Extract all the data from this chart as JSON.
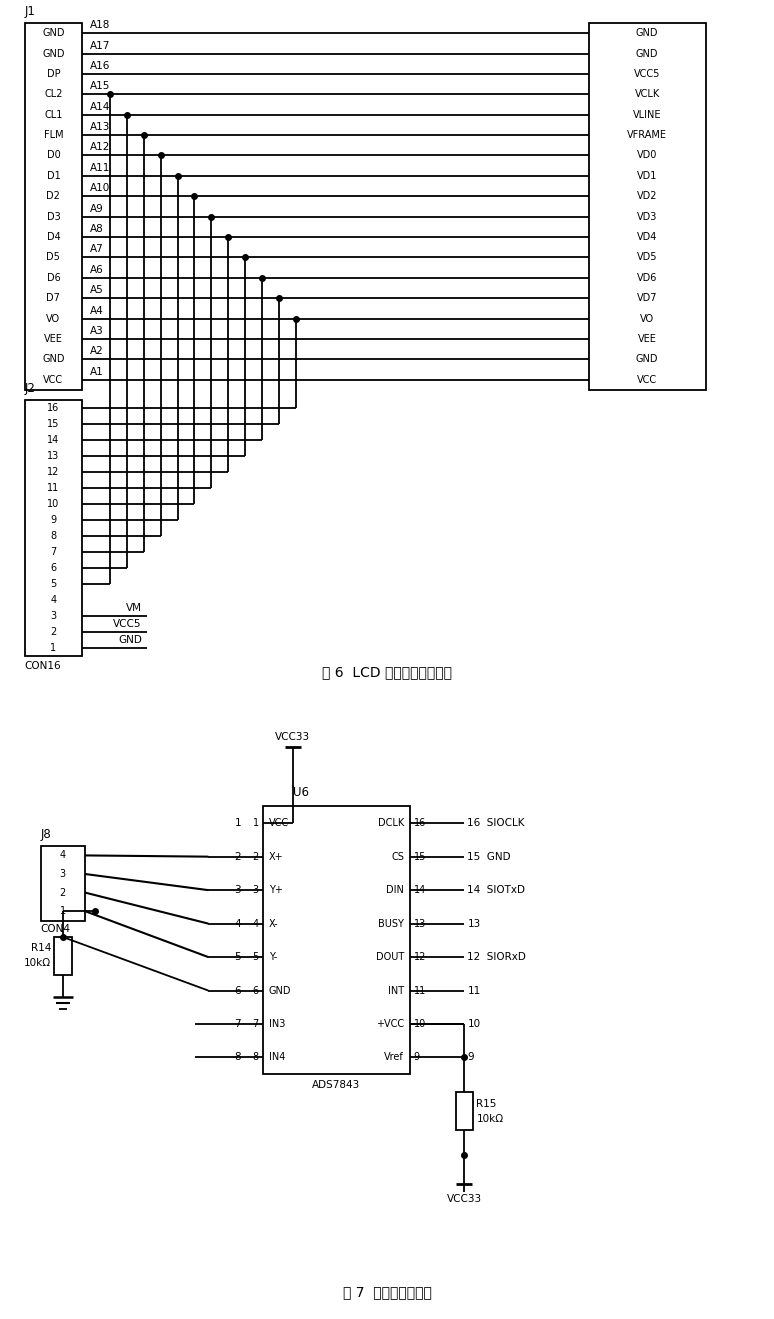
{
  "fig1_caption": "图 6  LCD 控制器的控制端口",
  "fig2_caption": "图 7  触摸屏的控制口",
  "background": "#ffffff",
  "j1_left_pins": [
    "GND",
    "GND",
    "DP",
    "CL2",
    "CL1",
    "FLM",
    "D0",
    "D1",
    "D2",
    "D3",
    "D4",
    "D5",
    "D6",
    "D7",
    "VO",
    "VEE",
    "GND",
    "VCC"
  ],
  "j1_right_signals": [
    "A18",
    "A17",
    "A16",
    "A15",
    "A14",
    "A13",
    "A12",
    "A11",
    "A10",
    "A9",
    "A8",
    "A7",
    "A6",
    "A5",
    "A4",
    "A3",
    "A2",
    "A1"
  ],
  "lcd_right_pins": [
    "GND",
    "GND",
    "VCC5",
    "VCLK",
    "VLINE",
    "VFRAME",
    "VD0",
    "VD1",
    "VD2",
    "VD3",
    "VD4",
    "VD5",
    "VD6",
    "VD7",
    "VO",
    "VEE",
    "GND",
    "VCC"
  ],
  "j2_pins": [
    "16",
    "15",
    "14",
    "13",
    "12",
    "11",
    "10",
    "9",
    "8",
    "7",
    "6",
    "5",
    "4",
    "3",
    "2",
    "1"
  ],
  "j2_bottom_signals": [
    "VM",
    "VCC5",
    "GND"
  ],
  "ads_left_pins": [
    "VCC",
    "X+",
    "Y+",
    "X-",
    "Y-",
    "GND",
    "IN3",
    "IN4"
  ],
  "ads_left_numbers": [
    "1",
    "2",
    "3",
    "4",
    "5",
    "6",
    "7",
    "8"
  ],
  "ads_right_pins": [
    "DCLK",
    "CS",
    "DIN",
    "BUSY",
    "DOUT",
    "INT",
    "+VCC",
    "Vref"
  ],
  "ads_right_numbers": [
    "16",
    "15",
    "14",
    "13",
    "12",
    "11",
    "10",
    "9"
  ],
  "ads_right_ext": [
    "SIOCLK",
    "GND",
    "SIOTxD",
    "",
    "SIORxD",
    "",
    "",
    ""
  ],
  "ads_right_ext_nums": [
    "16",
    "15",
    "14",
    "13",
    "12",
    "",
    "",
    ""
  ]
}
